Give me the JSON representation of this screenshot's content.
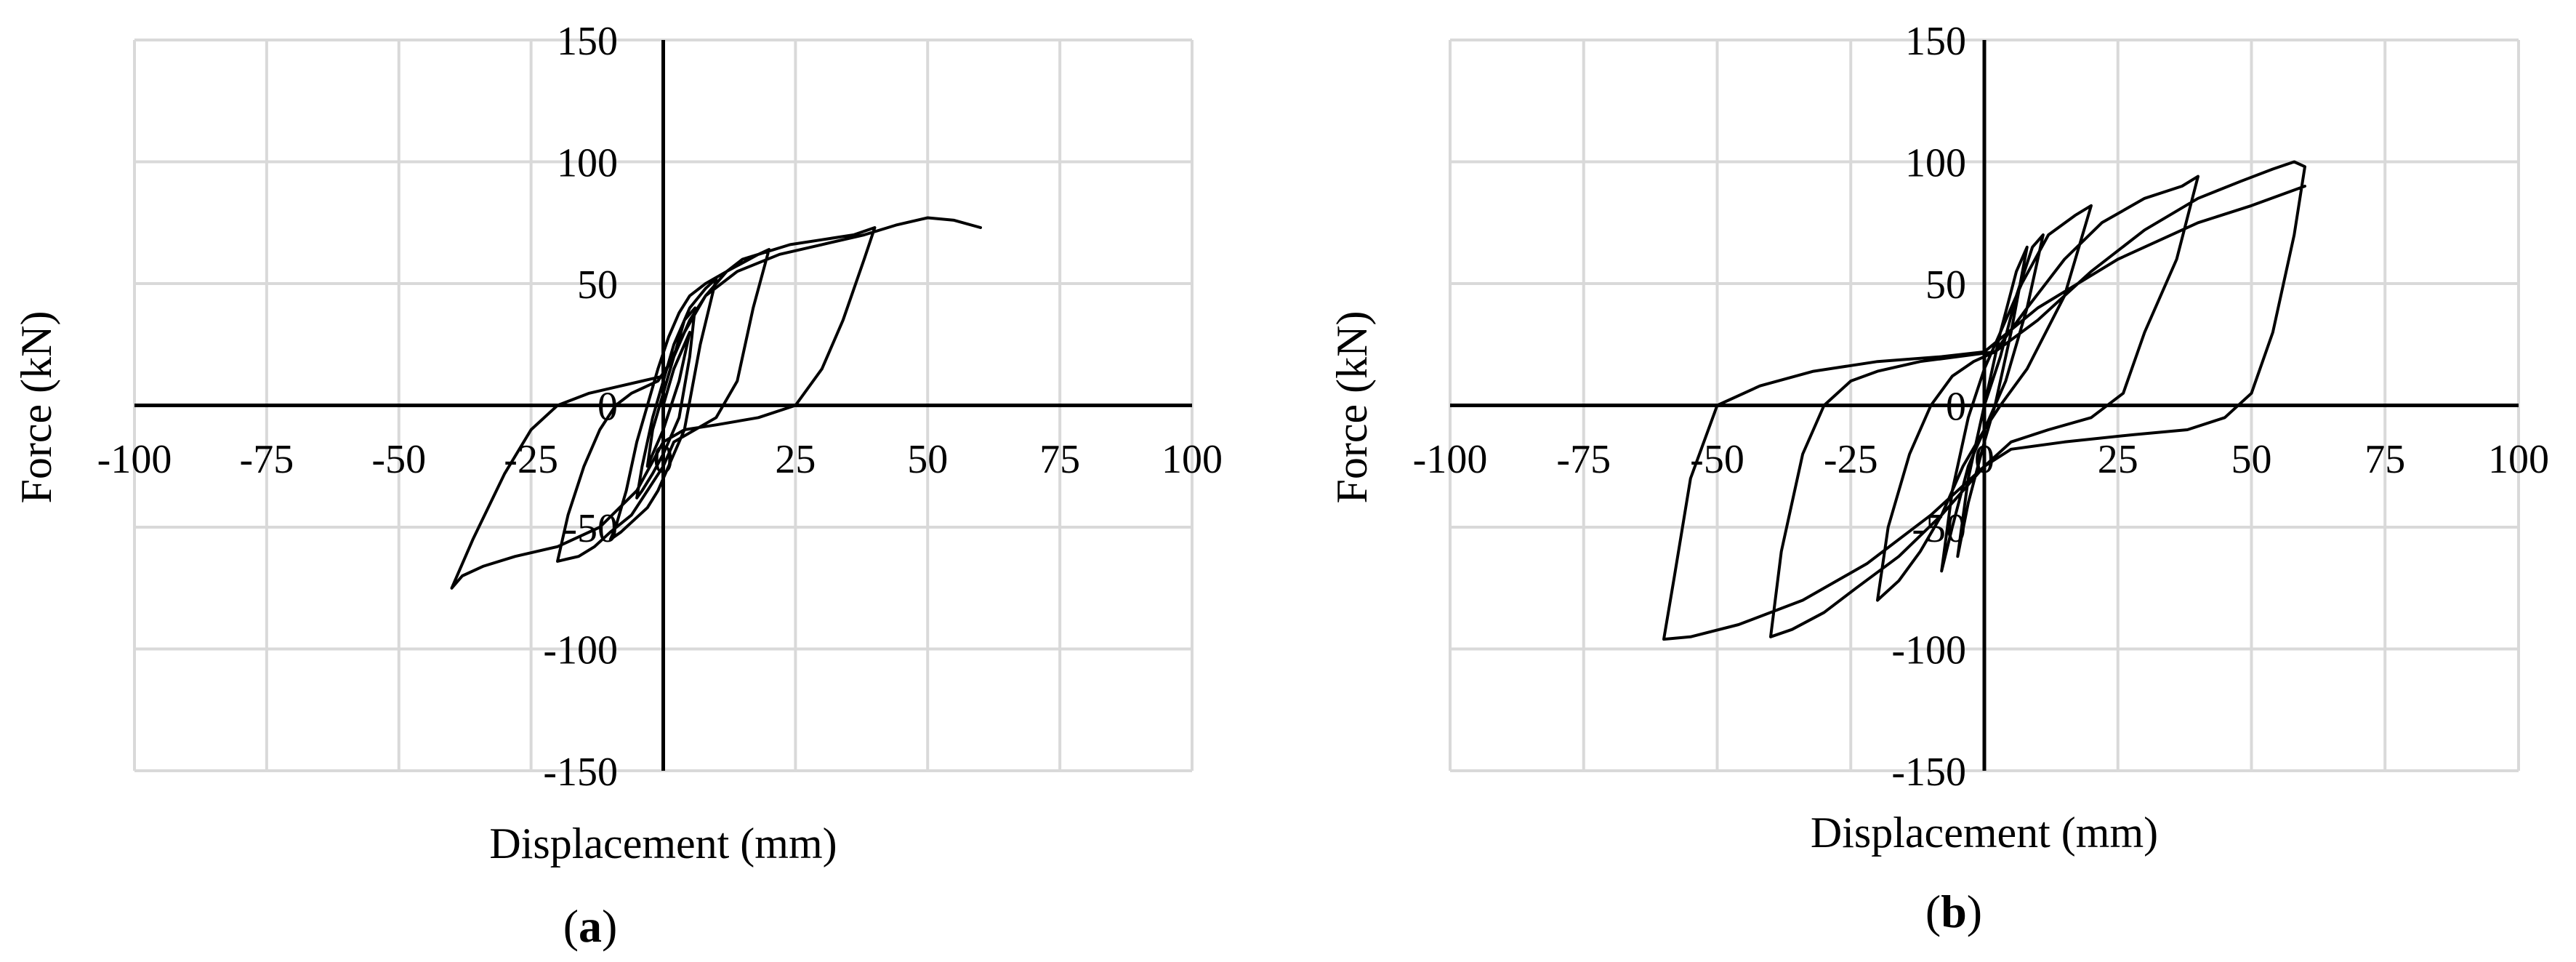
{
  "panels": [
    {
      "label_open": "(",
      "label_letter": "a",
      "label_close": ")"
    },
    {
      "label_open": "(",
      "label_letter": "b",
      "label_close": ")"
    }
  ],
  "chart_data": [
    {
      "type": "line",
      "panel": "a",
      "xlabel": "Displacement (mm)",
      "ylabel": "Force (kN)",
      "xlim": [
        -100,
        100
      ],
      "ylim": [
        -150,
        150
      ],
      "xticks": [
        -100,
        -75,
        -50,
        -25,
        0,
        25,
        50,
        75,
        100
      ],
      "yticks": [
        -150,
        -100,
        -50,
        0,
        50,
        100,
        150
      ],
      "grid": true,
      "series": [
        {
          "x": [
            0,
            2,
            4,
            5,
            3,
            0,
            -2,
            -3,
            -2,
            0,
            2,
            4,
            6,
            5,
            3,
            0,
            -2,
            -4,
            -5,
            -4,
            -2,
            0,
            2,
            5,
            8,
            10,
            7,
            4,
            1,
            -1,
            -3,
            -6,
            -8,
            -10,
            -9,
            -7,
            -5,
            -3,
            -1,
            1,
            3,
            5,
            8,
            12,
            15,
            18,
            20,
            17,
            14,
            10,
            6,
            2,
            0,
            -3,
            -6,
            -10,
            -13,
            -16,
            -18,
            -20,
            -18,
            -15,
            -12,
            -9,
            -6,
            -3,
            -1,
            2,
            5,
            8,
            12,
            18,
            24,
            30,
            36,
            40,
            38,
            34,
            30,
            25,
            18,
            10,
            4,
            0,
            -5,
            -12,
            -20,
            -28,
            -34,
            -38,
            -40,
            -36,
            -30,
            -25,
            -20,
            -14,
            -8,
            -4,
            0,
            4,
            8,
            14,
            22,
            30,
            38,
            44,
            50,
            55,
            60
          ],
          "y": [
            0,
            15,
            25,
            30,
            10,
            -10,
            -20,
            -25,
            -10,
            5,
            20,
            35,
            40,
            20,
            -5,
            -20,
            -28,
            -35,
            -38,
            -25,
            -5,
            10,
            25,
            40,
            48,
            52,
            25,
            -10,
            -25,
            -35,
            -42,
            -48,
            -52,
            -55,
            -50,
            -35,
            -15,
            0,
            15,
            28,
            38,
            45,
            50,
            55,
            60,
            62,
            64,
            40,
            10,
            -5,
            -10,
            -15,
            -25,
            -35,
            -45,
            -52,
            -58,
            -62,
            -63,
            -64,
            -45,
            -25,
            -10,
            0,
            5,
            8,
            10,
            20,
            35,
            45,
            55,
            62,
            66,
            68,
            70,
            73,
            60,
            35,
            15,
            0,
            -5,
            -8,
            -10,
            -15,
            -35,
            -50,
            -58,
            -62,
            -66,
            -70,
            -75,
            -55,
            -28,
            -10,
            0,
            5,
            8,
            10,
            12,
            30,
            45,
            55,
            62,
            66,
            70,
            74,
            77,
            76,
            73
          ]
        }
      ]
    },
    {
      "type": "line",
      "panel": "b",
      "xlabel": "Displacement (mm)",
      "ylabel": "Force (kN)",
      "xlim": [
        -100,
        100
      ],
      "ylim": [
        -150,
        150
      ],
      "xticks": [
        -100,
        -75,
        -50,
        -25,
        0,
        25,
        50,
        75,
        100
      ],
      "yticks": [
        -150,
        -100,
        -50,
        0,
        50,
        100,
        150
      ],
      "grid": true,
      "series": [
        {
          "x": [
            0,
            3,
            6,
            8,
            5,
            2,
            0,
            -3,
            -5,
            -3,
            0,
            3,
            6,
            9,
            11,
            8,
            4,
            0,
            -3,
            -6,
            -8,
            -6,
            -3,
            0,
            3,
            7,
            12,
            17,
            20,
            15,
            8,
            3,
            0,
            -4,
            -8,
            -12,
            -16,
            -20,
            -18,
            -14,
            -10,
            -6,
            -2,
            2,
            8,
            15,
            22,
            30,
            37,
            40,
            36,
            30,
            26,
            20,
            12,
            5,
            0,
            -8,
            -16,
            -24,
            -30,
            -36,
            -40,
            -38,
            -34,
            -30,
            -25,
            -20,
            -12,
            -5,
            2,
            10,
            20,
            30,
            40,
            48,
            54,
            58,
            60,
            58,
            54,
            50,
            45,
            38,
            28,
            15,
            5,
            0,
            -10,
            -22,
            -34,
            -46,
            -55,
            -60,
            -58,
            -55,
            -50,
            -42,
            -32,
            -20,
            -8,
            0,
            10,
            25,
            40,
            50,
            60
          ],
          "y": [
            0,
            30,
            55,
            65,
            30,
            0,
            -15,
            -40,
            -62,
            -30,
            0,
            20,
            45,
            65,
            70,
            40,
            10,
            -10,
            -25,
            -50,
            -68,
            -35,
            -5,
            15,
            30,
            50,
            70,
            78,
            82,
            45,
            15,
            0,
            -10,
            -25,
            -45,
            -60,
            -72,
            -80,
            -50,
            -20,
            0,
            12,
            18,
            22,
            40,
            60,
            75,
            85,
            90,
            94,
            60,
            30,
            5,
            -5,
            -10,
            -15,
            -25,
            -45,
            -62,
            -75,
            -85,
            -92,
            -95,
            -60,
            -20,
            0,
            10,
            14,
            18,
            20,
            22,
            35,
            55,
            72,
            85,
            92,
            97,
            100,
            98,
            70,
            30,
            5,
            -5,
            -10,
            -12,
            -15,
            -18,
            -25,
            -45,
            -65,
            -80,
            -90,
            -95,
            -96,
            -70,
            -30,
            0,
            8,
            14,
            18,
            20,
            22,
            40,
            60,
            75,
            82,
            90
          ]
        }
      ]
    }
  ]
}
